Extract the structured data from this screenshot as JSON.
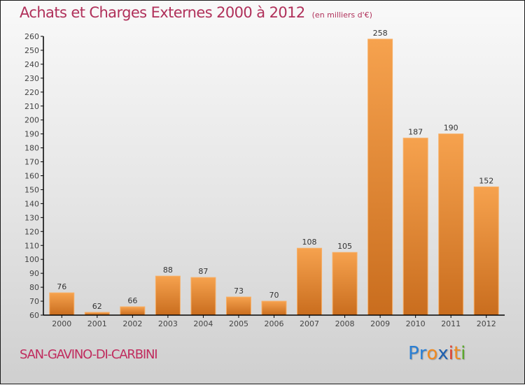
{
  "header": {
    "title": "Achats et Charges Externes 2000 à 2012",
    "unit": "(en milliers d'€)"
  },
  "footer": {
    "city": "SAN-GAVINO-DI-CARBINI",
    "logo": {
      "letters": [
        {
          "char": "P",
          "color": "#2a7fd4"
        },
        {
          "char": "r",
          "color": "#2a7fd4"
        },
        {
          "char": "o",
          "color": "#f08a20"
        },
        {
          "char": "x",
          "color": "#1d5fb0"
        },
        {
          "char": "i",
          "color": "#e23b2a"
        },
        {
          "char": "t",
          "color": "#f08a20"
        },
        {
          "char": "i",
          "color": "#5aa82a"
        }
      ]
    }
  },
  "colors": {
    "title": "#b0305a",
    "bar_top": "#f6a24e",
    "bar_bottom": "#c96d1e",
    "axis": "#000000"
  },
  "chart_data": {
    "type": "bar",
    "title": "Achats et Charges Externes 2000 à 2012",
    "subtitle": "(en milliers d'€)",
    "xlabel": "",
    "ylabel": "",
    "categories": [
      "2000",
      "2001",
      "2002",
      "2003",
      "2004",
      "2005",
      "2006",
      "2007",
      "2008",
      "2009",
      "2010",
      "2011",
      "2012"
    ],
    "values": [
      76,
      62,
      66,
      88,
      87,
      73,
      70,
      108,
      105,
      258,
      187,
      190,
      152
    ],
    "ylim": [
      60,
      260
    ],
    "yticks": [
      60,
      70,
      80,
      90,
      100,
      110,
      120,
      130,
      140,
      150,
      160,
      170,
      180,
      190,
      200,
      210,
      220,
      230,
      240,
      250,
      260
    ],
    "grid": false,
    "legend": "none"
  }
}
